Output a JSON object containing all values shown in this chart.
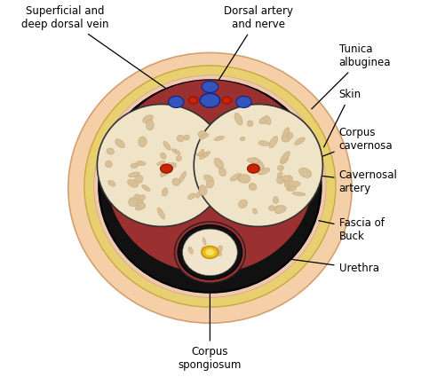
{
  "bg_color": "#ffffff",
  "skin_color": "#f5cfa8",
  "skin_edge": "#d4a070",
  "fascia_color": "#e8d070",
  "fascia_edge": "#c8a840",
  "tunica_color": "#1a1a1a",
  "inner_dark": "#1a1010",
  "corpus_cav_fill": "#f0e4c8",
  "corpus_sep_color": "#9b3030",
  "corpus_sponge_fill": "#f0e4cc",
  "red_artery": "#cc2200",
  "red_edge": "#881100",
  "blue_vein": "#3355bb",
  "blue_edge": "#112288",
  "yellow_urethra": "#e8b820",
  "yellow_edge": "#b08800",
  "texture_fill": "#d8c098",
  "texture_edge": "#c8a878",
  "label_fontsize": 8.5,
  "labels": {
    "superficial_vein": "Superficial and\ndeep dorsal vein",
    "dorsal_artery": "Dorsal artery\nand nerve",
    "tunica": "Tunica\nalbuginea",
    "skin": "Skin",
    "corpus_cav": "Corpus\ncavernosa",
    "cav_artery": "Cavernosal\nartery",
    "fascia": "Fascia of\nBuck",
    "urethra": "Urethra",
    "corpus_sponge": "Corpus\nspongiosum"
  }
}
